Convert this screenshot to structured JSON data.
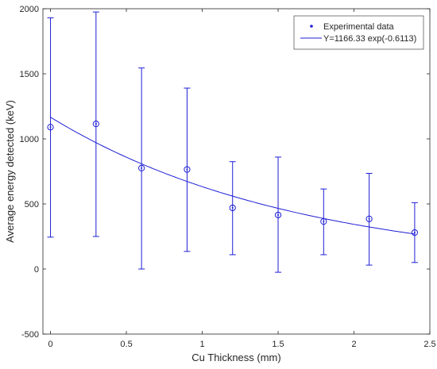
{
  "chart_data": {
    "type": "scatter",
    "title": "",
    "xlabel": "Cu Thickness (mm)",
    "ylabel": "Average energy detected (keV)",
    "xlim": [
      -0.05,
      2.5
    ],
    "ylim": [
      -500,
      2000
    ],
    "xticks": [
      0,
      0.5,
      1,
      1.5,
      2,
      2.5
    ],
    "xtick_labels": [
      "0",
      "0.5",
      "1",
      "1.5",
      "2",
      "2.5"
    ],
    "yticks": [
      -500,
      0,
      500,
      1000,
      1500,
      2000
    ],
    "ytick_labels": [
      "-500",
      "0",
      "500",
      "1000",
      "1500",
      "2000"
    ],
    "grid": false,
    "legend_position": "top-right",
    "color": "#1f1fd6",
    "series": [
      {
        "name": "Experimental data",
        "kind": "points-with-error-bars",
        "x": [
          0,
          0.3,
          0.6,
          0.9,
          1.2,
          1.5,
          1.8,
          2.1,
          2.4
        ],
        "y": [
          1090,
          1115,
          775,
          765,
          470,
          415,
          365,
          385,
          280
        ],
        "err_low": [
          245,
          250,
          0,
          135,
          110,
          -25,
          110,
          30,
          50
        ],
        "err_high": [
          1930,
          1975,
          1545,
          1390,
          825,
          860,
          615,
          735,
          510
        ]
      },
      {
        "name": "Y=1166.33 exp(-0.6113)",
        "kind": "fit-line",
        "amplitude": 1166.33,
        "rate": 0.6113,
        "x_range": [
          0,
          2.4
        ]
      }
    ]
  }
}
